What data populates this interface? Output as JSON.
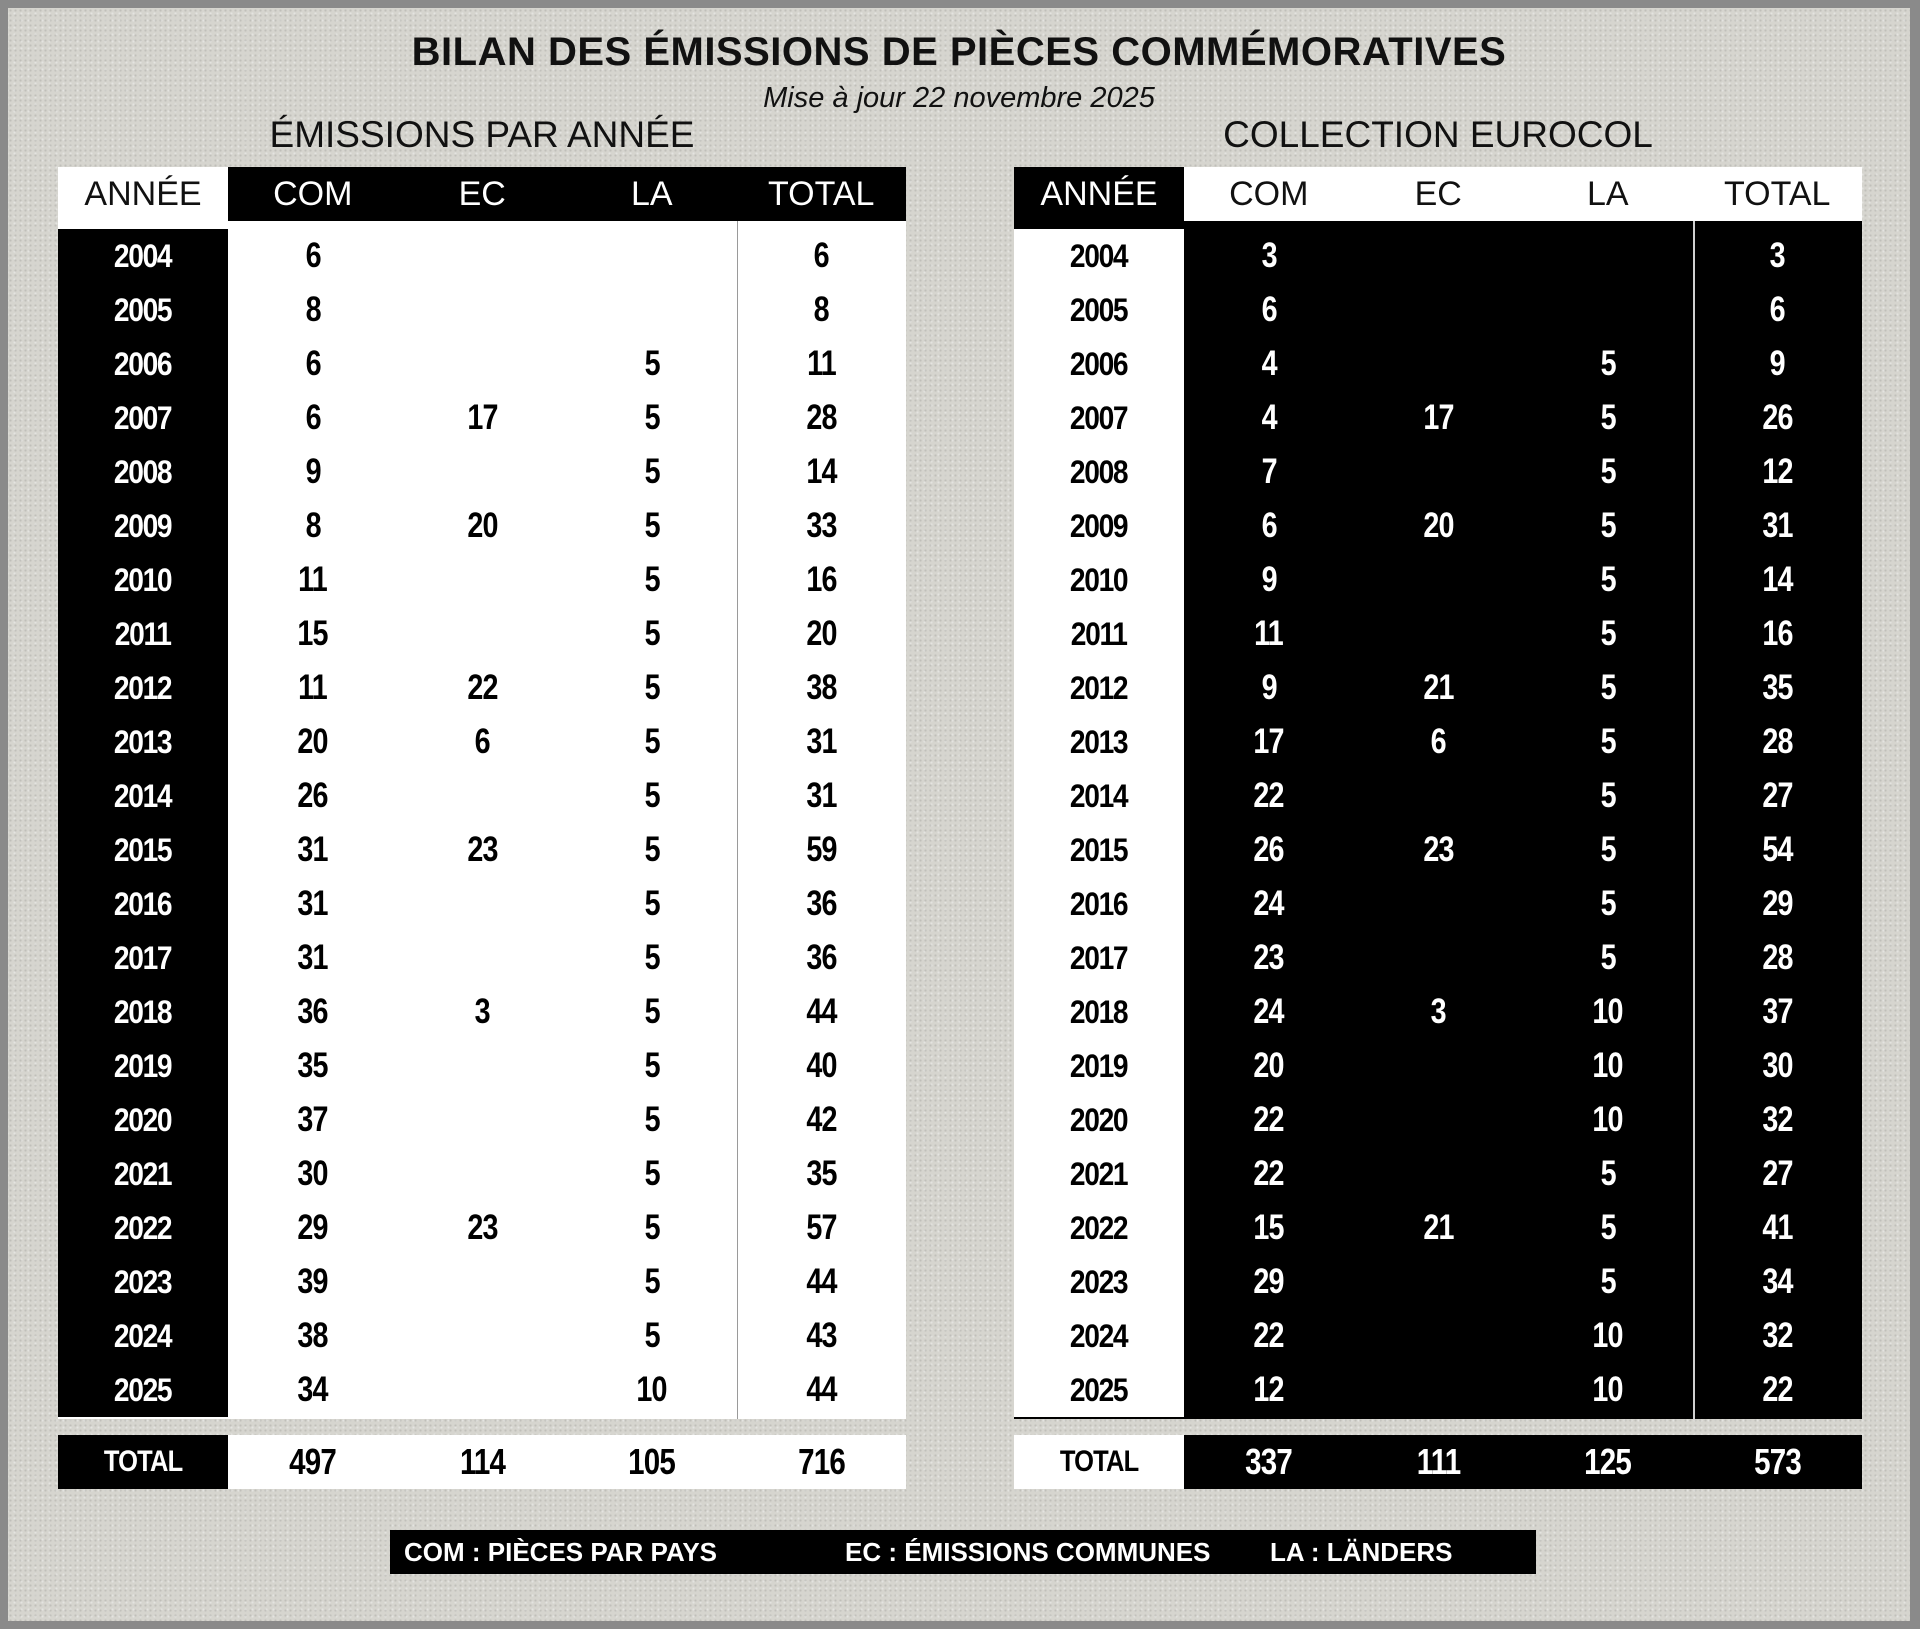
{
  "title": "BILAN DES ÉMISSIONS DE PIÈCES COMMÉMORATIVES",
  "subtitle": "Mise à jour 22 novembre 2025",
  "left": {
    "title": "ÉMISSIONS PAR ANNÉE",
    "headers": [
      "ANNÉE",
      "COM",
      "EC",
      "LA",
      "TOTAL"
    ],
    "rows": [
      [
        "2004",
        "6",
        "",
        "",
        "6"
      ],
      [
        "2005",
        "8",
        "",
        "",
        "8"
      ],
      [
        "2006",
        "6",
        "",
        "5",
        "11"
      ],
      [
        "2007",
        "6",
        "17",
        "5",
        "28"
      ],
      [
        "2008",
        "9",
        "",
        "5",
        "14"
      ],
      [
        "2009",
        "8",
        "20",
        "5",
        "33"
      ],
      [
        "2010",
        "11",
        "",
        "5",
        "16"
      ],
      [
        "2011",
        "15",
        "",
        "5",
        "20"
      ],
      [
        "2012",
        "11",
        "22",
        "5",
        "38"
      ],
      [
        "2013",
        "20",
        "6",
        "5",
        "31"
      ],
      [
        "2014",
        "26",
        "",
        "5",
        "31"
      ],
      [
        "2015",
        "31",
        "23",
        "5",
        "59"
      ],
      [
        "2016",
        "31",
        "",
        "5",
        "36"
      ],
      [
        "2017",
        "31",
        "",
        "5",
        "36"
      ],
      [
        "2018",
        "36",
        "3",
        "5",
        "44"
      ],
      [
        "2019",
        "35",
        "",
        "5",
        "40"
      ],
      [
        "2020",
        "37",
        "",
        "5",
        "42"
      ],
      [
        "2021",
        "30",
        "",
        "5",
        "35"
      ],
      [
        "2022",
        "29",
        "23",
        "5",
        "57"
      ],
      [
        "2023",
        "39",
        "",
        "5",
        "44"
      ],
      [
        "2024",
        "38",
        "",
        "5",
        "43"
      ],
      [
        "2025",
        "34",
        "",
        "10",
        "44"
      ]
    ],
    "total": [
      "TOTAL",
      "497",
      "114",
      "105",
      "716"
    ]
  },
  "right": {
    "title": "COLLECTION EUROCOL",
    "headers": [
      "ANNÉE",
      "COM",
      "EC",
      "LA",
      "TOTAL"
    ],
    "rows": [
      [
        "2004",
        "3",
        "",
        "",
        "3"
      ],
      [
        "2005",
        "6",
        "",
        "",
        "6"
      ],
      [
        "2006",
        "4",
        "",
        "5",
        "9"
      ],
      [
        "2007",
        "4",
        "17",
        "5",
        "26"
      ],
      [
        "2008",
        "7",
        "",
        "5",
        "12"
      ],
      [
        "2009",
        "6",
        "20",
        "5",
        "31"
      ],
      [
        "2010",
        "9",
        "",
        "5",
        "14"
      ],
      [
        "2011",
        "11",
        "",
        "5",
        "16"
      ],
      [
        "2012",
        "9",
        "21",
        "5",
        "35"
      ],
      [
        "2013",
        "17",
        "6",
        "5",
        "28"
      ],
      [
        "2014",
        "22",
        "",
        "5",
        "27"
      ],
      [
        "2015",
        "26",
        "23",
        "5",
        "54"
      ],
      [
        "2016",
        "24",
        "",
        "5",
        "29"
      ],
      [
        "2017",
        "23",
        "",
        "5",
        "28"
      ],
      [
        "2018",
        "24",
        "3",
        "10",
        "37"
      ],
      [
        "2019",
        "20",
        "",
        "10",
        "30"
      ],
      [
        "2020",
        "22",
        "",
        "10",
        "32"
      ],
      [
        "2021",
        "22",
        "",
        "5",
        "27"
      ],
      [
        "2022",
        "15",
        "21",
        "5",
        "41"
      ],
      [
        "2023",
        "29",
        "",
        "5",
        "34"
      ],
      [
        "2024",
        "22",
        "",
        "10",
        "32"
      ],
      [
        "2025",
        "12",
        "",
        "10",
        "22"
      ]
    ],
    "total": [
      "TOTAL",
      "337",
      "111",
      "125",
      "573"
    ]
  },
  "legend": {
    "com": "COM : PIÈCES PAR PAYS",
    "ec": "EC : ÉMISSIONS COMMUNES",
    "la": "LA : LÄNDERS"
  }
}
